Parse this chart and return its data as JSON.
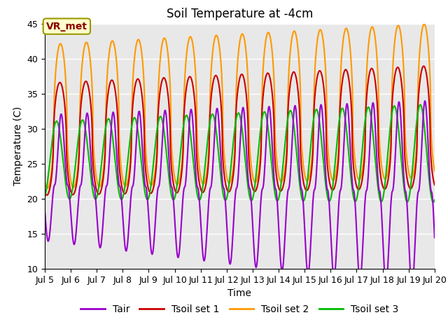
{
  "title": "Soil Temperature at -4cm",
  "xlabel": "Time",
  "ylabel": "Temperature (C)",
  "ylim": [
    10,
    45
  ],
  "xlim": [
    5,
    20
  ],
  "xtick_labels": [
    "Jul 5",
    "Jul 6",
    "Jul 7",
    "Jul 8",
    "Jul 9",
    "Jul 10",
    "Jul 11",
    "Jul 12",
    "Jul 13",
    "Jul 14",
    "Jul 15",
    "Jul 16",
    "Jul 17",
    "Jul 18",
    "Jul 19",
    "Jul 20"
  ],
  "xtick_positions": [
    5,
    6,
    7,
    8,
    9,
    10,
    11,
    12,
    13,
    14,
    15,
    16,
    17,
    18,
    19,
    20
  ],
  "ytick_positions": [
    10,
    15,
    20,
    25,
    30,
    35,
    40,
    45
  ],
  "legend_entries": [
    "Tair",
    "Tsoil set 1",
    "Tsoil set 2",
    "Tsoil set 3"
  ],
  "colors": {
    "Tair": "#9900cc",
    "Tsoil_set1": "#cc0000",
    "Tsoil_set2": "#ff9900",
    "Tsoil_set3": "#00bb00"
  },
  "background_color": "#e8e8e8",
  "fig_background": "#ffffff",
  "annotation_text": "VR_met",
  "annotation_color": "#8b0000",
  "annotation_bg": "#ffffcc",
  "annotation_border": "#999900",
  "grid_color": "#ffffff",
  "period": 1.0,
  "n_points": 2000,
  "title_fontsize": 12,
  "axis_label_fontsize": 10,
  "tick_fontsize": 9,
  "legend_fontsize": 10,
  "linewidth": 1.5
}
